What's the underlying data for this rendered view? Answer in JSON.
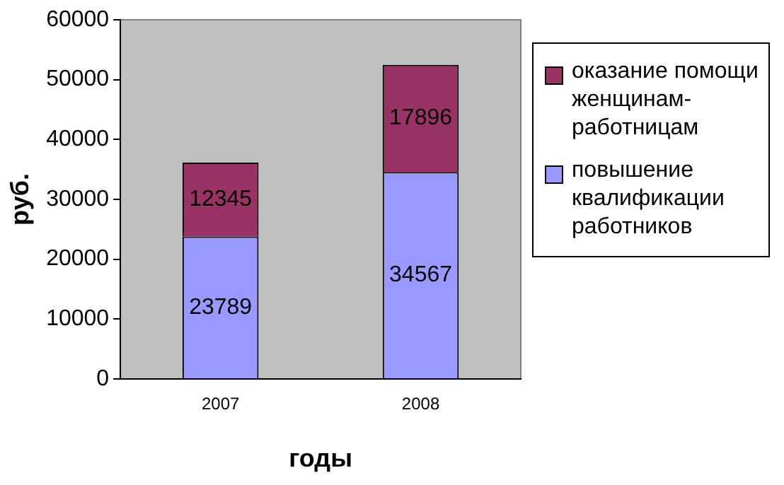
{
  "chart_data": {
    "type": "bar",
    "stacked": true,
    "xlabel": "годы",
    "ylabel": "руб.",
    "categories": [
      "2007",
      "2008"
    ],
    "series": [
      {
        "name": "повышение квалификации работников",
        "color": "#9999ff",
        "values": [
          23789,
          34567
        ]
      },
      {
        "name": "оказание помощи женщинам-работницам",
        "color": "#993366",
        "values": [
          12345,
          17896
        ]
      }
    ],
    "ylim": [
      0,
      60000
    ],
    "yticks": [
      0,
      10000,
      20000,
      30000,
      40000,
      50000,
      60000
    ],
    "grid": false,
    "legend": "right",
    "data_labels": true
  }
}
